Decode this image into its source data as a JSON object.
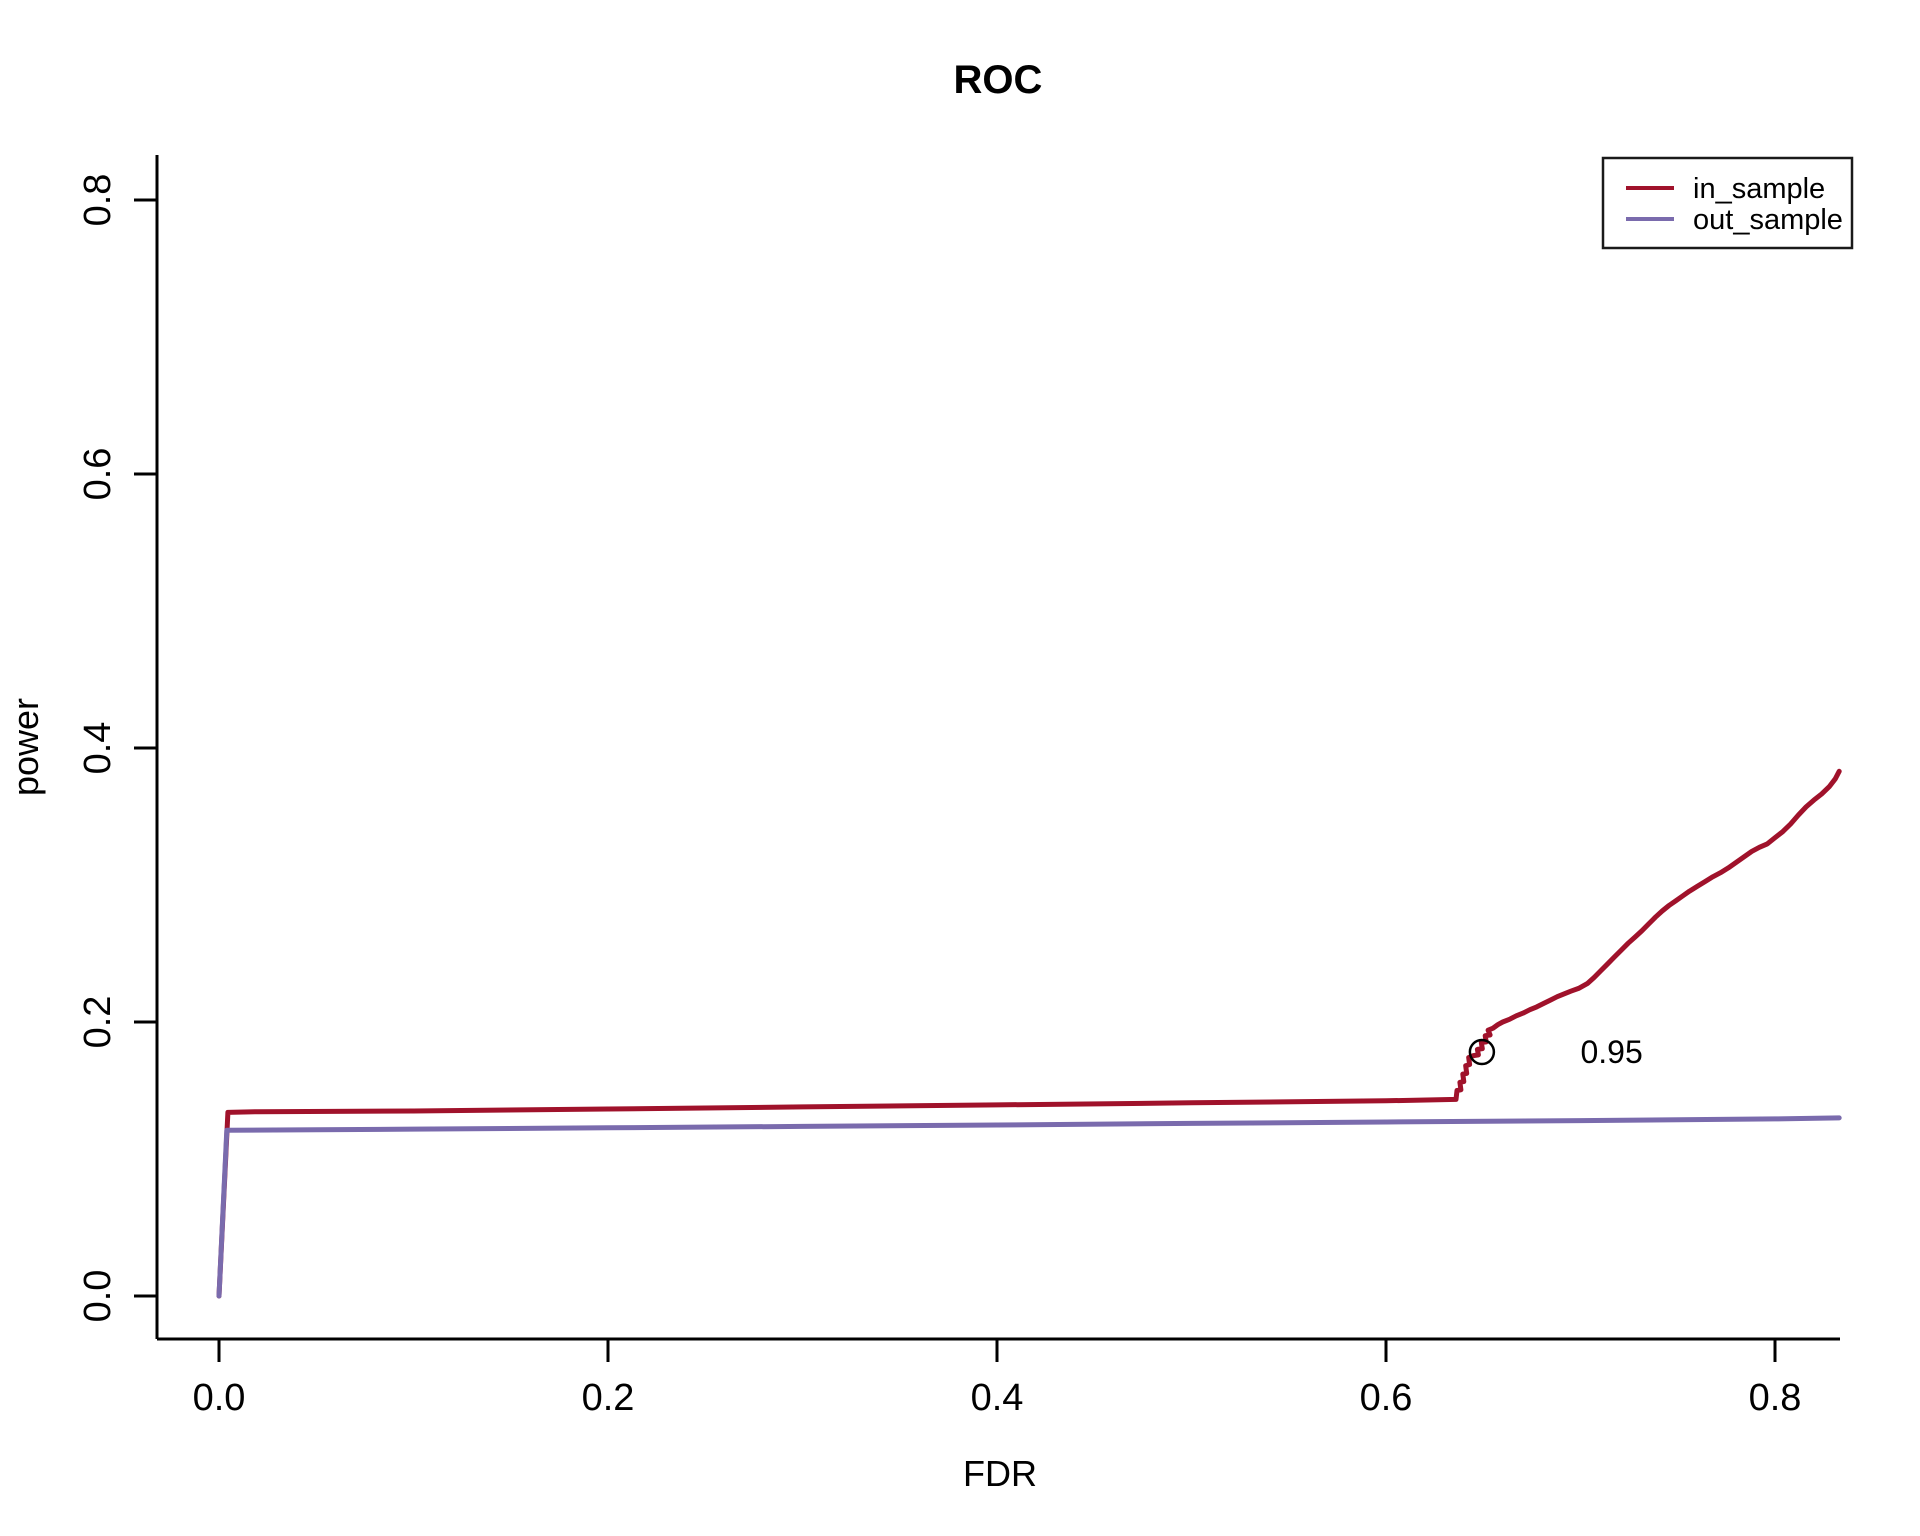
{
  "title": "ROC",
  "chart_data": {
    "type": "line",
    "title": "ROC",
    "xlabel": "FDR",
    "ylabel": "power",
    "xlim": [
      -0.03,
      0.84
    ],
    "ylim": [
      -0.03,
      0.84
    ],
    "grid": false,
    "x_tick_labels": [
      "0.0",
      "0.2",
      "0.4",
      "0.6",
      "0.8"
    ],
    "y_tick_labels": [
      "0.0",
      "0.2",
      "0.4",
      "0.6",
      "0.8"
    ],
    "legend": {
      "position": "top-right"
    },
    "series": [
      {
        "name": "in_sample",
        "color": "#A0122B",
        "points": [
          [
            0.0,
            0.0
          ],
          [
            0.0046,
            0.134
          ],
          [
            0.02,
            0.1345
          ],
          [
            0.1,
            0.135
          ],
          [
            0.2,
            0.1365
          ],
          [
            0.3,
            0.138
          ],
          [
            0.4,
            0.1395
          ],
          [
            0.5,
            0.141
          ],
          [
            0.6,
            0.1425
          ],
          [
            0.636,
            0.1435
          ],
          [
            0.6365,
            0.15
          ],
          [
            0.6385,
            0.1505
          ],
          [
            0.638,
            0.156
          ],
          [
            0.64,
            0.1565
          ],
          [
            0.6395,
            0.162
          ],
          [
            0.6415,
            0.1625
          ],
          [
            0.641,
            0.168
          ],
          [
            0.643,
            0.169
          ],
          [
            0.6425,
            0.174
          ],
          [
            0.645,
            0.1755
          ],
          [
            0.6475,
            0.176
          ],
          [
            0.647,
            0.18
          ],
          [
            0.6495,
            0.1805
          ],
          [
            0.649,
            0.185
          ],
          [
            0.6515,
            0.1855
          ],
          [
            0.651,
            0.19
          ],
          [
            0.6535,
            0.1905
          ],
          [
            0.6525,
            0.194
          ],
          [
            0.655,
            0.1955
          ],
          [
            0.6575,
            0.198
          ],
          [
            0.66,
            0.2
          ],
          [
            0.6635,
            0.202
          ],
          [
            0.667,
            0.2045
          ],
          [
            0.6705,
            0.2065
          ],
          [
            0.674,
            0.209
          ],
          [
            0.6775,
            0.211
          ],
          [
            0.681,
            0.2135
          ],
          [
            0.6845,
            0.216
          ],
          [
            0.688,
            0.2185
          ],
          [
            0.6915,
            0.2205
          ],
          [
            0.695,
            0.2225
          ],
          [
            0.699,
            0.2245
          ],
          [
            0.7035,
            0.228
          ],
          [
            0.707,
            0.2325
          ],
          [
            0.7105,
            0.2375
          ],
          [
            0.714,
            0.2425
          ],
          [
            0.7175,
            0.2475
          ],
          [
            0.721,
            0.2525
          ],
          [
            0.7245,
            0.2575
          ],
          [
            0.728,
            0.262
          ],
          [
            0.7315,
            0.2665
          ],
          [
            0.735,
            0.2715
          ],
          [
            0.7385,
            0.2765
          ],
          [
            0.742,
            0.281
          ],
          [
            0.7455,
            0.285
          ],
          [
            0.749,
            0.2885
          ],
          [
            0.7525,
            0.292
          ],
          [
            0.756,
            0.2955
          ],
          [
            0.76,
            0.299
          ],
          [
            0.764,
            0.3025
          ],
          [
            0.768,
            0.306
          ],
          [
            0.772,
            0.309
          ],
          [
            0.776,
            0.3125
          ],
          [
            0.78,
            0.3165
          ],
          [
            0.784,
            0.3205
          ],
          [
            0.788,
            0.3245
          ],
          [
            0.792,
            0.3275
          ],
          [
            0.796,
            0.33
          ],
          [
            0.8,
            0.3345
          ],
          [
            0.804,
            0.339
          ],
          [
            0.808,
            0.3445
          ],
          [
            0.812,
            0.351
          ],
          [
            0.816,
            0.357
          ],
          [
            0.82,
            0.362
          ],
          [
            0.824,
            0.3665
          ],
          [
            0.828,
            0.372
          ],
          [
            0.831,
            0.3775
          ],
          [
            0.833,
            0.383
          ]
        ]
      },
      {
        "name": "out_sample",
        "color": "#7A6BAD",
        "points": [
          [
            0.0,
            0.0
          ],
          [
            0.004,
            0.121
          ],
          [
            0.05,
            0.1213
          ],
          [
            0.1,
            0.1218
          ],
          [
            0.2,
            0.1228
          ],
          [
            0.3,
            0.1238
          ],
          [
            0.4,
            0.1248
          ],
          [
            0.5,
            0.126
          ],
          [
            0.6,
            0.127
          ],
          [
            0.7,
            0.128
          ],
          [
            0.8,
            0.1293
          ],
          [
            0.833,
            0.13
          ]
        ]
      }
    ],
    "marker": {
      "shape": "open-circle",
      "color": "#000000",
      "x": 0.6493,
      "y": 0.1781
    },
    "annotation": {
      "text": "0.95",
      "color": "#A0122B",
      "x": 0.716,
      "y": 0.179
    }
  }
}
